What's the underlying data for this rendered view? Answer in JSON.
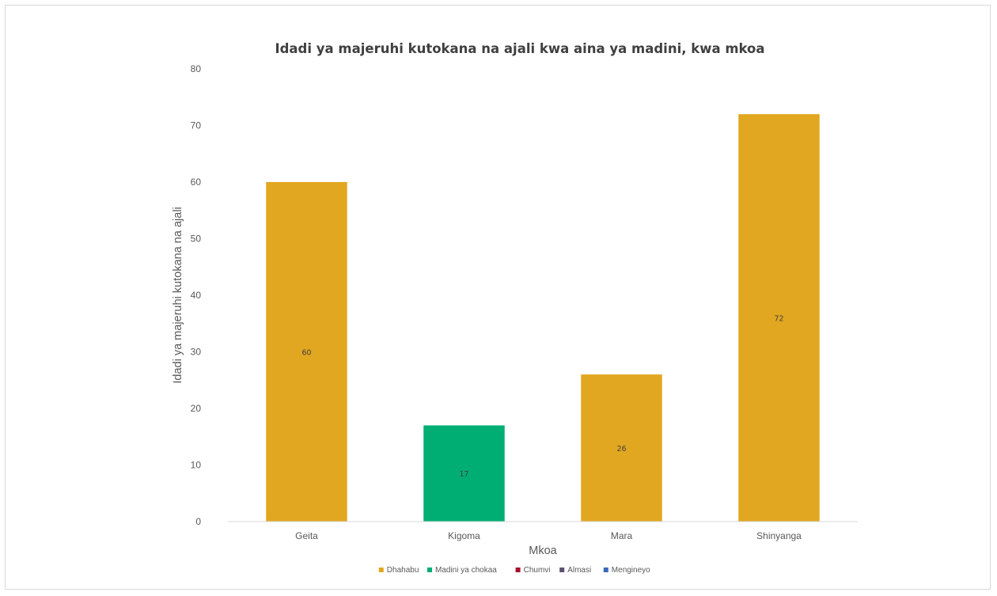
{
  "chart_data": {
    "type": "bar",
    "title": "Idadi ya majeruhi kutokana na ajali kwa aina ya madini, kwa mkoa",
    "xlabel": "Mkoa",
    "ylabel": "Idadi ya majeruhi kutokana na ajali",
    "categories": [
      "Geita",
      "Kigoma",
      "Mara",
      "Shinyanga"
    ],
    "ylim": [
      0,
      80
    ],
    "yticks": [
      "0",
      "10",
      "20",
      "30",
      "40",
      "50",
      "60",
      "70",
      "80"
    ],
    "series": [
      {
        "name": "Dhahabu",
        "color": "#E2A720",
        "values": [
          60,
          0,
          26,
          72
        ]
      },
      {
        "name": "Madini ya chokaa",
        "color": "#00AE74",
        "values": [
          0,
          17,
          0,
          0
        ]
      },
      {
        "name": "Chumvi",
        "color": "#A8102A",
        "values": [
          0,
          0,
          0,
          0
        ]
      },
      {
        "name": "Almasi",
        "color": "#5B4E73",
        "values": [
          0,
          0,
          0,
          0
        ]
      },
      {
        "name": "Mengineyo",
        "color": "#3A6BB8",
        "values": [
          0,
          0,
          0,
          0
        ]
      }
    ],
    "data_labels": true,
    "grid": false,
    "legend": "bottom"
  }
}
